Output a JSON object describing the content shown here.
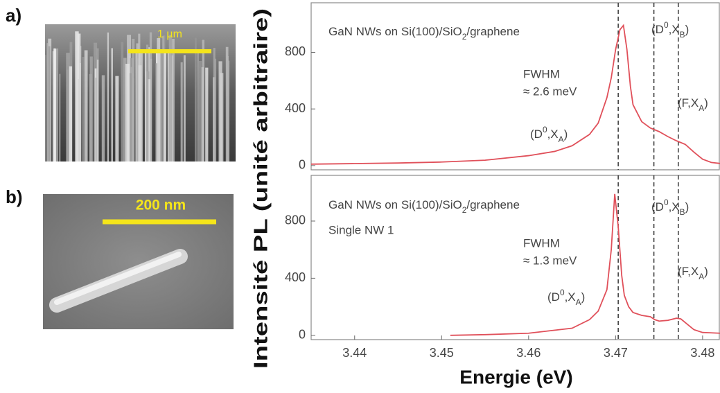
{
  "panels": {
    "a": {
      "label": "a)",
      "scale": "1 µm"
    },
    "b": {
      "label": "b)",
      "scale": "200 nm"
    }
  },
  "chart_data": [
    {
      "type": "line",
      "title": [
        {
          "text": "GaN NWs on Si(100)/SiO"
        },
        {
          "text": "2",
          "script": "sub"
        },
        {
          "text": "/graphene"
        }
      ],
      "fwhm": [
        "FWHM",
        "≈ 2.6 meV"
      ],
      "ylabel": "Intensité PL (unité arbitraire)",
      "annotations": [
        {
          "parts": [
            {
              "text": "(D"
            },
            {
              "text": "0",
              "script": "sup"
            },
            {
              "text": ",X"
            },
            {
              "text": "A",
              "script": "sub"
            },
            {
              "text": ")"
            }
          ]
        },
        {
          "parts": [
            {
              "text": "(D"
            },
            {
              "text": "0",
              "script": "sup"
            },
            {
              "text": ",X"
            },
            {
              "text": "B",
              "script": "sub"
            },
            {
              "text": ")"
            }
          ]
        },
        {
          "parts": [
            {
              "text": "(F,X"
            },
            {
              "text": "A",
              "script": "sub"
            },
            {
              "text": ")"
            }
          ]
        }
      ],
      "x": [
        3.435,
        3.44,
        3.445,
        3.45,
        3.455,
        3.46,
        3.463,
        3.465,
        3.467,
        3.468,
        3.469,
        3.4695,
        3.47,
        3.4705,
        3.4709,
        3.4713,
        3.4717,
        3.472,
        3.473,
        3.474,
        3.475,
        3.476,
        3.477,
        3.478,
        3.479,
        3.48,
        3.481,
        3.482
      ],
      "series": [
        {
          "color": "#e0505a",
          "values": [
            10,
            14,
            18,
            25,
            38,
            70,
            100,
            140,
            220,
            300,
            480,
            620,
            820,
            960,
            990,
            820,
            560,
            430,
            310,
            265,
            240,
            205,
            175,
            150,
            95,
            45,
            22,
            15
          ]
        }
      ],
      "xlim": [
        3.435,
        3.482
      ],
      "ylim": [
        -30,
        1150
      ],
      "yticks": [
        0,
        400,
        800
      ],
      "vlines": [
        3.4703,
        3.4744,
        3.4772
      ]
    },
    {
      "type": "line",
      "title": [
        {
          "text": "GaN NWs on Si(100)/SiO"
        },
        {
          "text": "2",
          "script": "sub"
        },
        {
          "text": "/graphene"
        }
      ],
      "subtitle": "Single NW 1",
      "fwhm": [
        "FWHM",
        "≈ 1.3 meV"
      ],
      "xlabel": "Energie (eV)",
      "annotations": [
        {
          "parts": [
            {
              "text": "(D"
            },
            {
              "text": "0",
              "script": "sup"
            },
            {
              "text": ",X"
            },
            {
              "text": "A",
              "script": "sub"
            },
            {
              "text": ")"
            }
          ]
        },
        {
          "parts": [
            {
              "text": "(D"
            },
            {
              "text": "0",
              "script": "sup"
            },
            {
              "text": ",X"
            },
            {
              "text": "B",
              "script": "sub"
            },
            {
              "text": ")"
            }
          ]
        },
        {
          "parts": [
            {
              "text": "(F,X"
            },
            {
              "text": "A",
              "script": "sub"
            },
            {
              "text": ")"
            }
          ]
        }
      ],
      "x": [
        3.451,
        3.455,
        3.46,
        3.465,
        3.467,
        3.468,
        3.469,
        3.4695,
        3.4699,
        3.4703,
        3.4707,
        3.471,
        3.4715,
        3.472,
        3.473,
        3.474,
        3.4745,
        3.475,
        3.476,
        3.477,
        3.4775,
        3.478,
        3.479,
        3.48,
        3.482
      ],
      "series": [
        {
          "color": "#e0505a",
          "values": [
            0,
            5,
            15,
            50,
            110,
            170,
            320,
            600,
            990,
            760,
            420,
            280,
            200,
            160,
            140,
            130,
            110,
            100,
            105,
            120,
            115,
            90,
            40,
            20,
            15
          ]
        }
      ],
      "xlim": [
        3.435,
        3.482
      ],
      "ylim": [
        -30,
        1120
      ],
      "yticks": [
        0,
        400,
        800
      ],
      "xticks": [
        3.44,
        3.45,
        3.46,
        3.47,
        3.48
      ],
      "vlines": [
        3.4703,
        3.4744,
        3.4772
      ]
    }
  ]
}
